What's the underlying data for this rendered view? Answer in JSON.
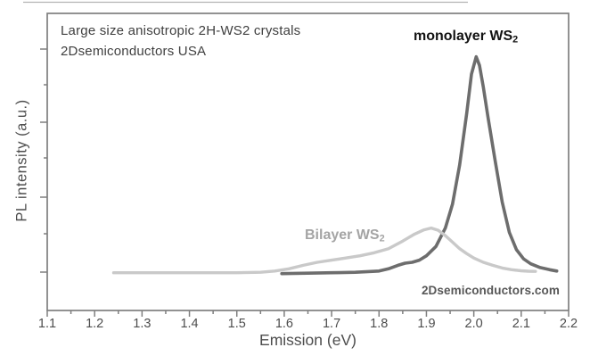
{
  "figure": {
    "annotation": {
      "line1": "Large size anisotropic 2H-WS2 crystals",
      "line2": "2Dsemiconductors USA"
    },
    "labels": {
      "monolayer": {
        "text": "monolayer WS",
        "sub": "2"
      },
      "bilayer": {
        "text": "Bilayer WS",
        "sub": "2"
      },
      "watermark": "2Dsemiconductors.com"
    },
    "axes": {
      "x_label": "Emission (eV)",
      "y_label": "PL intensity (a.u.)"
    }
  },
  "chart_data": {
    "type": "line",
    "title": "",
    "xlabel": "Emission (eV)",
    "ylabel": "PL intensity (a.u.)",
    "xlim": [
      1.1,
      2.2
    ],
    "ylim": [
      -0.17,
      1.2
    ],
    "grid": false,
    "legend_position": "none",
    "x_tick_labels": [
      "1.1",
      "1.2",
      "1.3",
      "1.4",
      "1.5",
      "1.6",
      "1.7",
      "1.8",
      "1.9",
      "2.0",
      "2.1",
      "2.2"
    ],
    "x_major_tick_step": 0.1,
    "x_minor_tick_step": 0.05,
    "frame_color": "#7f7f7f",
    "series": [
      {
        "name": "monolayer WS2",
        "color": "#6d6d6d",
        "stroke_width": 3.6,
        "peak_ev": 2.0,
        "points": [
          [
            1.595,
            0.0
          ],
          [
            1.65,
            0.002
          ],
          [
            1.7,
            0.004
          ],
          [
            1.75,
            0.006
          ],
          [
            1.8,
            0.012
          ],
          [
            1.82,
            0.022
          ],
          [
            1.84,
            0.038
          ],
          [
            1.855,
            0.048
          ],
          [
            1.87,
            0.052
          ],
          [
            1.885,
            0.062
          ],
          [
            1.9,
            0.082
          ],
          [
            1.92,
            0.125
          ],
          [
            1.94,
            0.21
          ],
          [
            1.955,
            0.32
          ],
          [
            1.97,
            0.5
          ],
          [
            1.985,
            0.74
          ],
          [
            1.995,
            0.92
          ],
          [
            2.005,
            1.0
          ],
          [
            2.012,
            0.96
          ],
          [
            2.02,
            0.86
          ],
          [
            2.03,
            0.72
          ],
          [
            2.045,
            0.52
          ],
          [
            2.06,
            0.33
          ],
          [
            2.075,
            0.19
          ],
          [
            2.09,
            0.11
          ],
          [
            2.105,
            0.068
          ],
          [
            2.12,
            0.045
          ],
          [
            2.14,
            0.028
          ],
          [
            2.16,
            0.018
          ],
          [
            2.175,
            0.012
          ]
        ]
      },
      {
        "name": "Bilayer WS2",
        "color": "#c9c9c9",
        "stroke_width": 3.4,
        "peak_ev": 1.91,
        "points": [
          [
            1.24,
            0.004
          ],
          [
            1.3,
            0.004
          ],
          [
            1.4,
            0.004
          ],
          [
            1.5,
            0.004
          ],
          [
            1.55,
            0.006
          ],
          [
            1.58,
            0.012
          ],
          [
            1.61,
            0.022
          ],
          [
            1.64,
            0.038
          ],
          [
            1.67,
            0.052
          ],
          [
            1.7,
            0.062
          ],
          [
            1.73,
            0.072
          ],
          [
            1.76,
            0.082
          ],
          [
            1.79,
            0.096
          ],
          [
            1.82,
            0.115
          ],
          [
            1.85,
            0.15
          ],
          [
            1.875,
            0.182
          ],
          [
            1.895,
            0.202
          ],
          [
            1.91,
            0.21
          ],
          [
            1.925,
            0.2
          ],
          [
            1.94,
            0.175
          ],
          [
            1.955,
            0.145
          ],
          [
            1.97,
            0.115
          ],
          [
            1.985,
            0.092
          ],
          [
            2.0,
            0.072
          ],
          [
            2.02,
            0.052
          ],
          [
            2.04,
            0.038
          ],
          [
            2.06,
            0.026
          ],
          [
            2.08,
            0.018
          ],
          [
            2.1,
            0.013
          ],
          [
            2.115,
            0.011
          ],
          [
            2.13,
            0.01
          ]
        ]
      }
    ]
  }
}
